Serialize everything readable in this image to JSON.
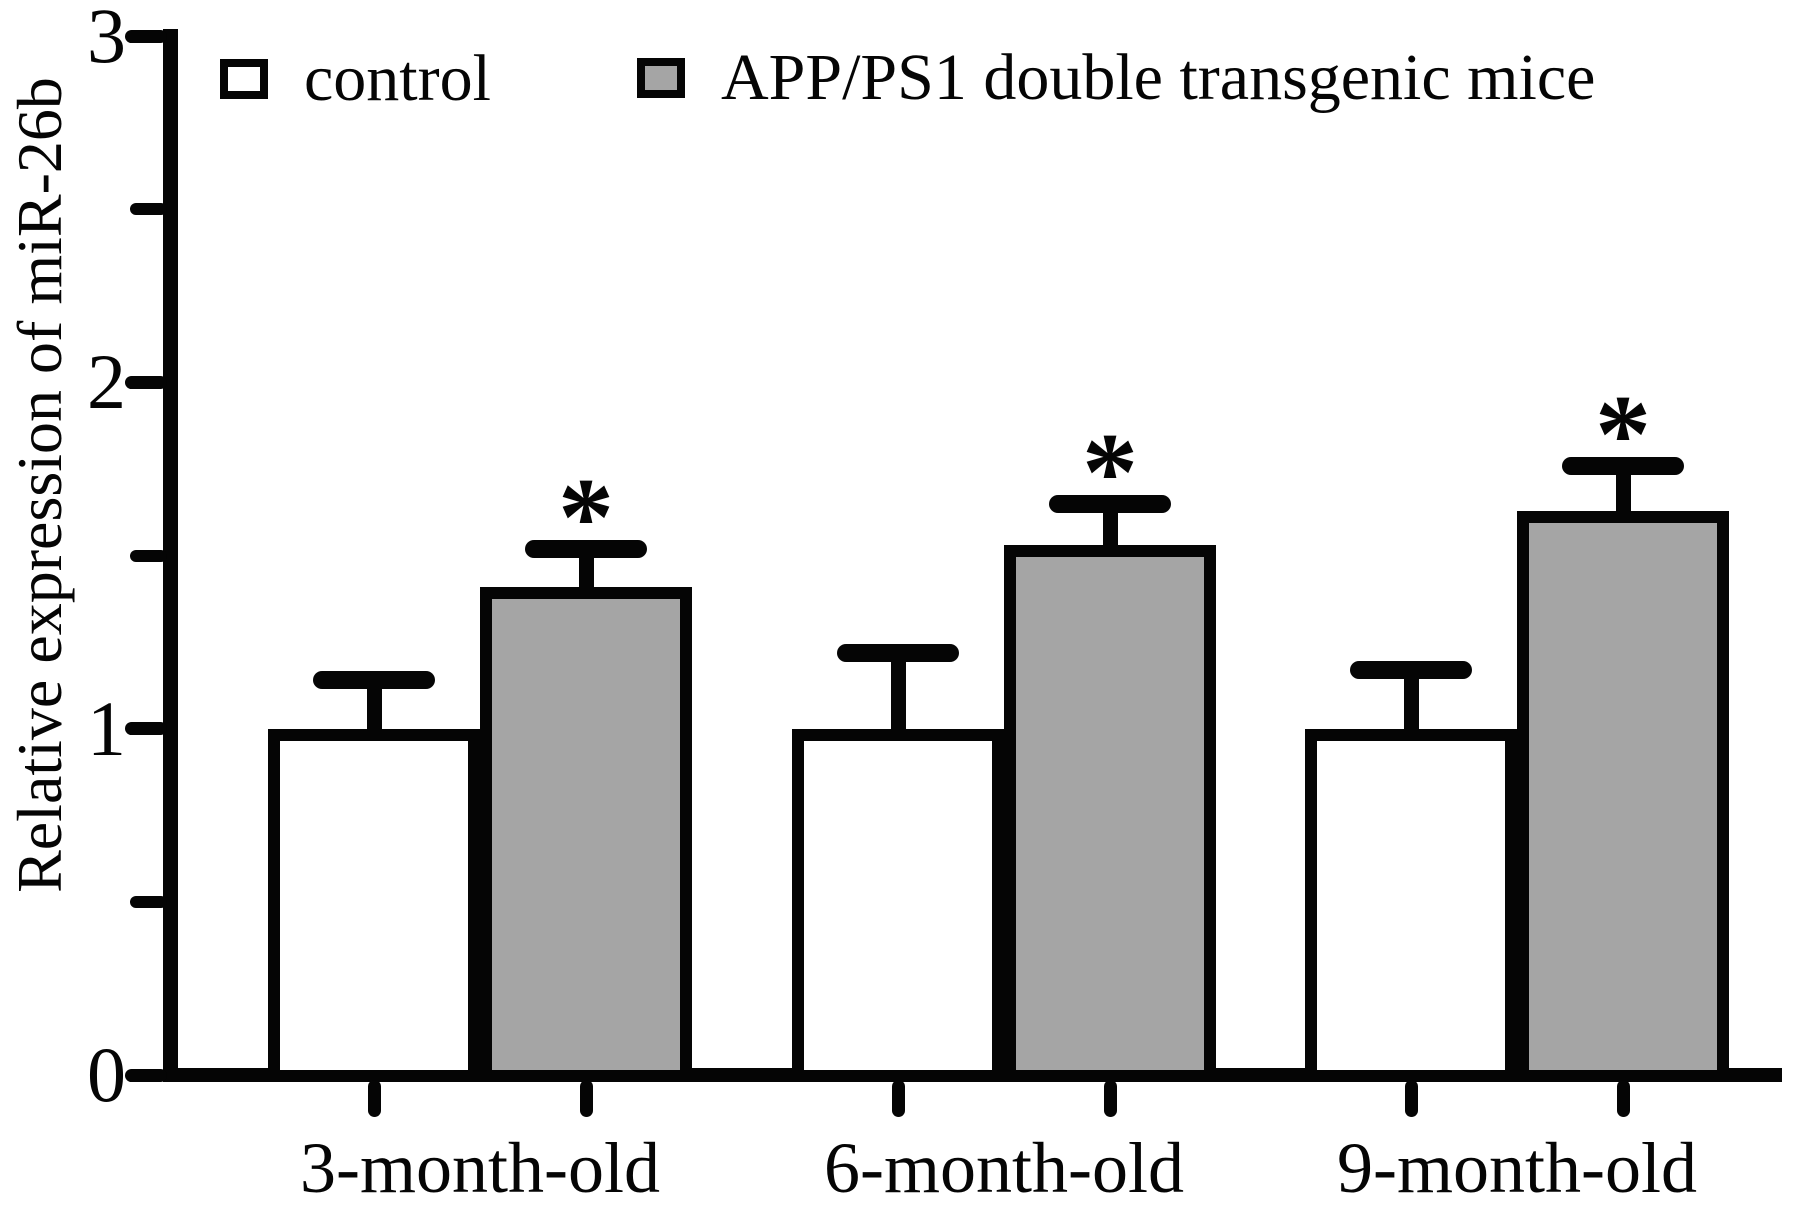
{
  "chart_data": {
    "type": "bar",
    "title": "",
    "ylabel": "Relative expression of miR-26b",
    "xlabel": "",
    "categories": [
      "3-month-old",
      "6-month-old",
      "9-month-old"
    ],
    "series": [
      {
        "name": "control",
        "fill": "#ffffff",
        "values": [
          1.0,
          1.0,
          1.0
        ],
        "errors_plus": [
          0.14,
          0.22,
          0.17
        ],
        "significance": [
          "",
          "",
          ""
        ]
      },
      {
        "name": "APP/PS1 double transgenic mice",
        "fill": "#a5a5a5",
        "values": [
          1.41,
          1.53,
          1.63
        ],
        "errors_plus": [
          0.11,
          0.12,
          0.13
        ],
        "significance": [
          "*",
          "*",
          "*"
        ]
      }
    ],
    "ylim": [
      0,
      3
    ],
    "yticks": [
      0,
      1,
      2,
      3
    ],
    "minor_yticks": [
      0.5,
      1.5,
      2.5
    ],
    "grid": false,
    "error_bars": "upper-only",
    "legend_position": "top-inside",
    "significance_marker": "*"
  },
  "legend": {
    "items": [
      {
        "label": "control",
        "swatch_fill": "#ffffff"
      },
      {
        "label": "APP/PS1 double transgenic mice",
        "swatch_fill": "#a5a5a5"
      }
    ]
  },
  "colors": {
    "foreground": "#050505",
    "background": "#ffffff",
    "bar_white": "#ffffff",
    "bar_gray": "#a5a5a5"
  }
}
